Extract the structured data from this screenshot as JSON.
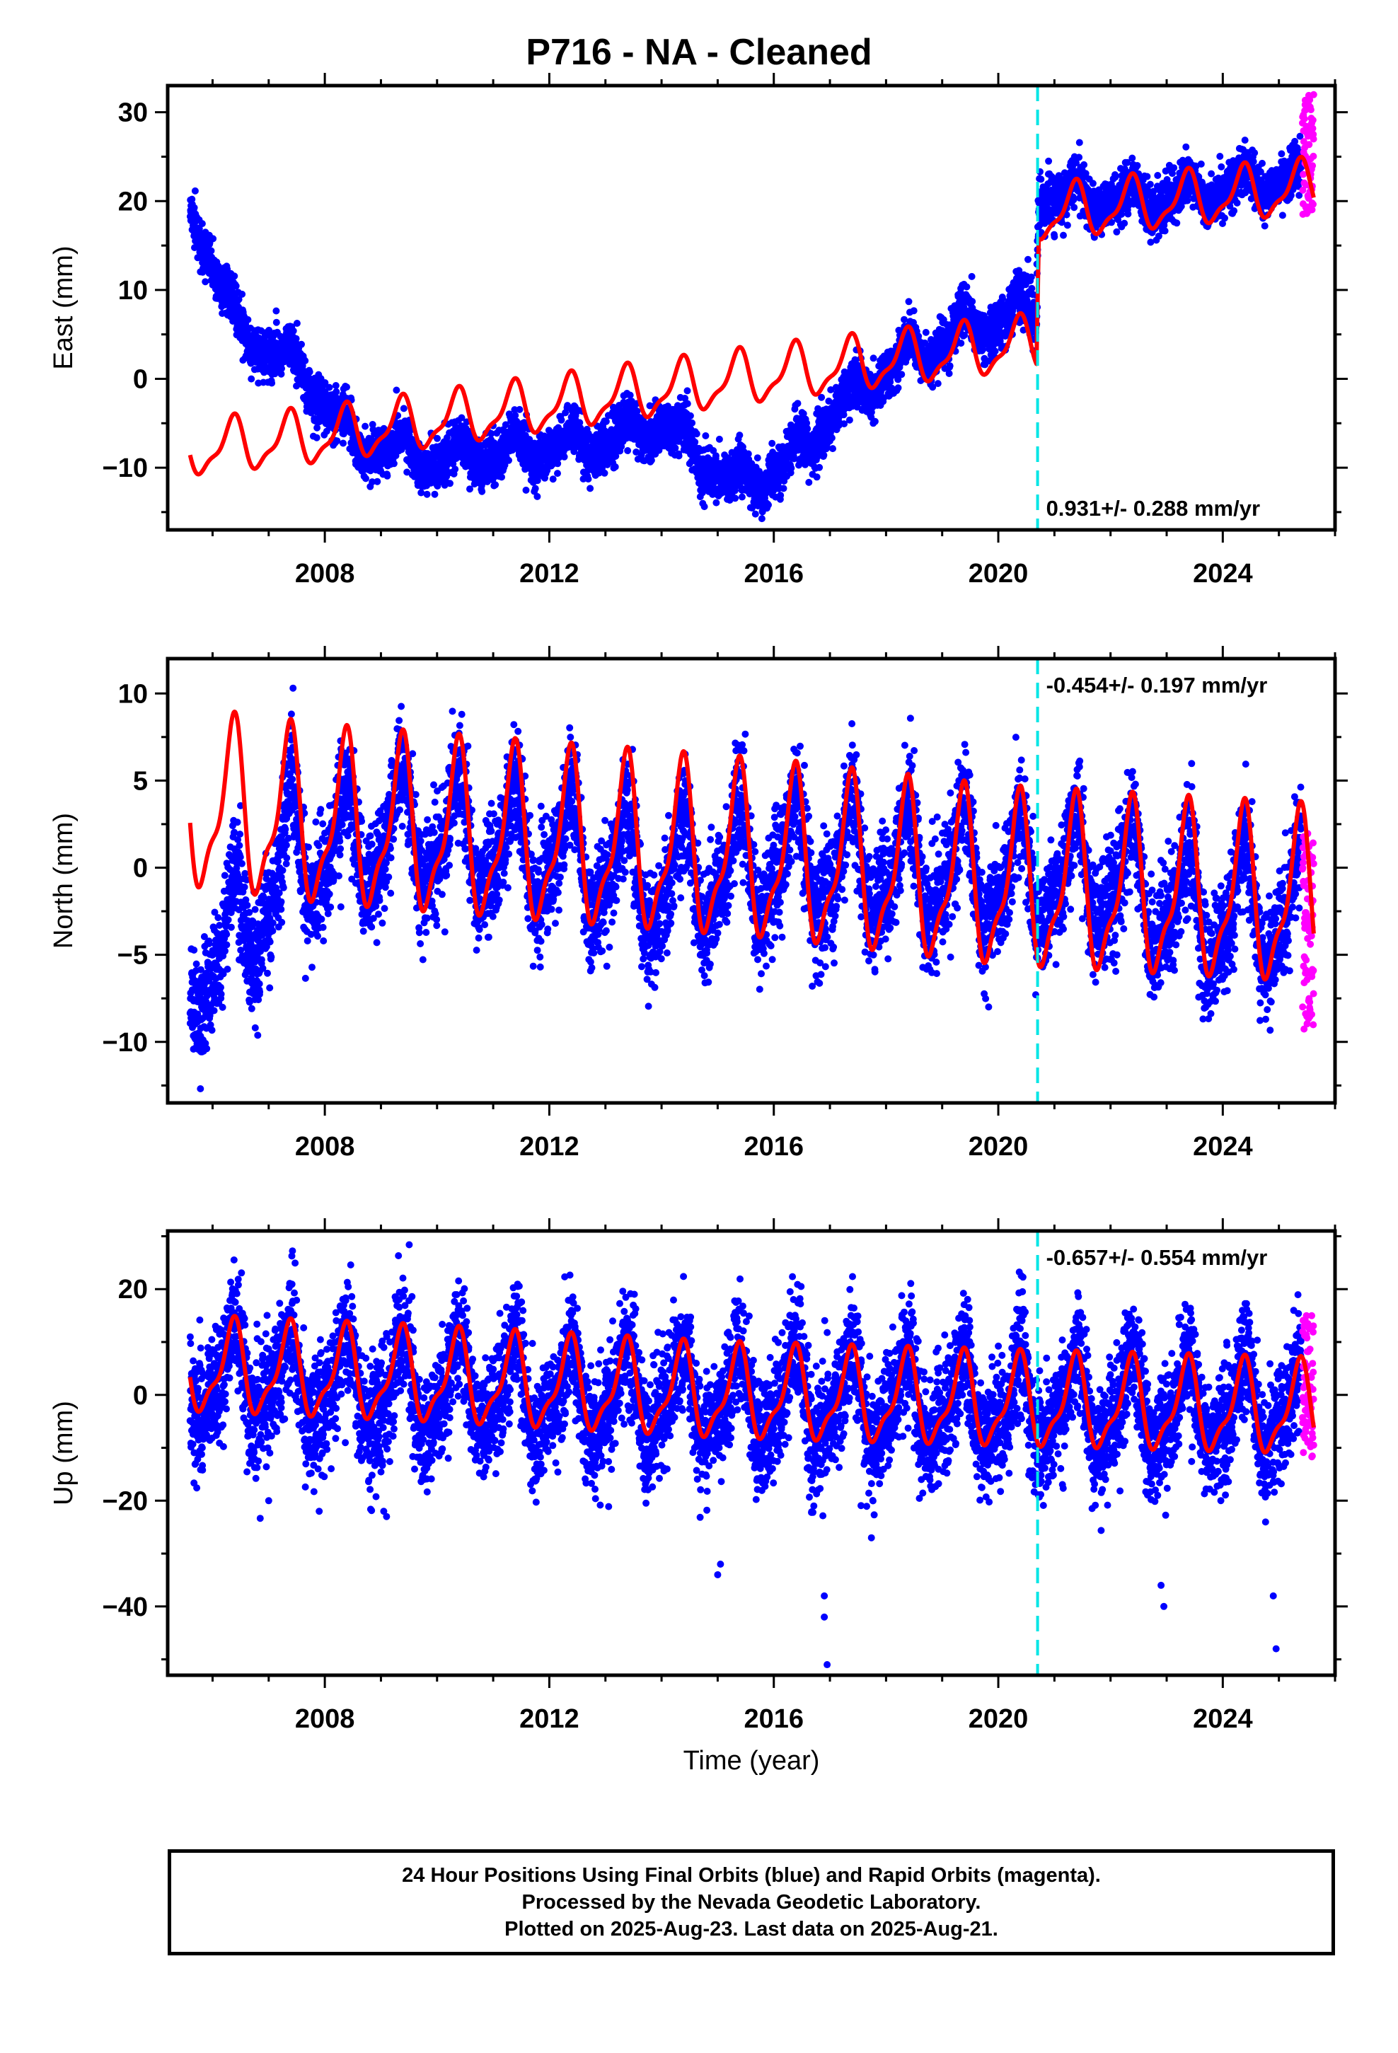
{
  "title": "P716  - NA - Cleaned",
  "caption": {
    "line1": "24 Hour Positions Using Final Orbits (blue) and Rapid Orbits (magenta).",
    "line2": "Processed by the Nevada Geodetic Laboratory.",
    "line3": "Plotted on 2025-Aug-23. Last data on 2025-Aug-21."
  },
  "colors": {
    "final_orbits": "#0000ff",
    "rapid_orbits": "#ff00ff",
    "model": "#ff0000",
    "event": "#00e5e5"
  },
  "chart_data": [
    {
      "type": "scatter",
      "ylabel": "East (mm)",
      "xlim": [
        2005.2,
        2026.0
      ],
      "ylim": [
        -17,
        33
      ],
      "xticks": [
        2008,
        2012,
        2016,
        2020,
        2024
      ],
      "yticks": [
        -10,
        0,
        10,
        20,
        30
      ],
      "event_x": 2020.7,
      "rate": "0.931+/- 0.288 mm/yr",
      "rate_position": "bottom-right",
      "data_start": 2005.6,
      "data_end": 2025.4,
      "rapid_start": 2025.42,
      "rapid_end": 2025.62,
      "trend_knots": [
        [
          2005.6,
          20
        ],
        [
          2006.4,
          6
        ],
        [
          2007.6,
          1
        ],
        [
          2008.5,
          -7
        ],
        [
          2010.0,
          -9
        ],
        [
          2011.5,
          -8
        ],
        [
          2013.0,
          -7
        ],
        [
          2014.0,
          -5
        ],
        [
          2015.3,
          -12
        ],
        [
          2016.2,
          -10
        ],
        [
          2017.0,
          -4
        ],
        [
          2018.0,
          1
        ],
        [
          2019.5,
          6
        ],
        [
          2020.68,
          8
        ],
        [
          2020.72,
          21
        ],
        [
          2022.5,
          20
        ],
        [
          2025.6,
          23
        ]
      ],
      "model_knots": [
        [
          2005.6,
          -8
        ],
        [
          2008.0,
          -6.5
        ],
        [
          2012.0,
          -3
        ],
        [
          2016.0,
          0.5
        ],
        [
          2020.68,
          4
        ],
        [
          2020.72,
          18.5
        ],
        [
          2025.6,
          21.5
        ]
      ],
      "model_amplitude": 2.8,
      "annual_amplitude": 1.5,
      "noise_sd": 1.4,
      "rapid_range": [
        18,
        32
      ]
    },
    {
      "type": "scatter",
      "ylabel": "North (mm)",
      "xlim": [
        2005.2,
        2026.0
      ],
      "ylim": [
        -13.5,
        12
      ],
      "xticks": [
        2008,
        2012,
        2016,
        2020,
        2024
      ],
      "yticks": [
        -10,
        -5,
        0,
        5,
        10
      ],
      "event_x": 2020.7,
      "rate": "-0.454+/- 0.197 mm/yr",
      "rate_position": "top-right",
      "data_start": 2005.6,
      "data_end": 2025.4,
      "rapid_start": 2025.42,
      "rapid_end": 2025.62,
      "trend_knots": [
        [
          2005.6,
          -6
        ],
        [
          2006.5,
          -4
        ],
        [
          2007.5,
          1
        ],
        [
          2009.5,
          2
        ],
        [
          2012.0,
          1
        ],
        [
          2014.0,
          -1
        ],
        [
          2016.0,
          0.5
        ],
        [
          2018.0,
          0
        ],
        [
          2020.0,
          -0.5
        ],
        [
          2022.0,
          -0.5
        ],
        [
          2023.8,
          -3
        ],
        [
          2025.6,
          -2
        ]
      ],
      "model_knots": [
        [
          2005.6,
          3.5
        ],
        [
          2008.0,
          2.5
        ],
        [
          2012.0,
          1.5
        ],
        [
          2016.0,
          0.5
        ],
        [
          2020.0,
          -1.0
        ],
        [
          2025.6,
          -2.0
        ]
      ],
      "model_amplitude": 4.5,
      "annual_amplitude": 3.0,
      "noise_sd": 1.6,
      "rapid_range": [
        -9.5,
        2
      ]
    },
    {
      "type": "scatter",
      "ylabel": "Up (mm)",
      "xlabel": "Time (year)",
      "xlim": [
        2005.2,
        2026.0
      ],
      "ylim": [
        -53,
        31
      ],
      "xticks": [
        2008,
        2012,
        2016,
        2020,
        2024
      ],
      "yticks": [
        -40,
        -20,
        0,
        20
      ],
      "event_x": 2020.7,
      "rate": "-0.657+/- 0.554 mm/yr",
      "rate_position": "top-right",
      "data_start": 2005.6,
      "data_end": 2025.4,
      "rapid_start": 2025.42,
      "rapid_end": 2025.62,
      "trend_knots": [
        [
          2005.6,
          3
        ],
        [
          2010.0,
          1
        ],
        [
          2015.0,
          -1
        ],
        [
          2020.0,
          -2
        ],
        [
          2025.6,
          -3
        ]
      ],
      "model_knots": [
        [
          2005.6,
          5
        ],
        [
          2010.0,
          3
        ],
        [
          2015.0,
          0
        ],
        [
          2020.0,
          -1.5
        ],
        [
          2025.6,
          -3
        ]
      ],
      "model_amplitude": 8,
      "annual_amplitude": 8,
      "noise_sd": 5.5,
      "rapid_range": [
        -12,
        15
      ],
      "outliers": [
        [
          2016.9,
          -38
        ],
        [
          2016.9,
          -42
        ],
        [
          2016.95,
          -51
        ],
        [
          2024.9,
          -38
        ],
        [
          2024.95,
          -48
        ],
        [
          2015.0,
          -34
        ],
        [
          2015.05,
          -32
        ],
        [
          2022.9,
          -36
        ],
        [
          2022.95,
          -40
        ],
        [
          2009.05,
          -22
        ],
        [
          2007.9,
          -22
        ],
        [
          2009.1,
          -23
        ],
        [
          2007.0,
          -20
        ]
      ]
    }
  ]
}
